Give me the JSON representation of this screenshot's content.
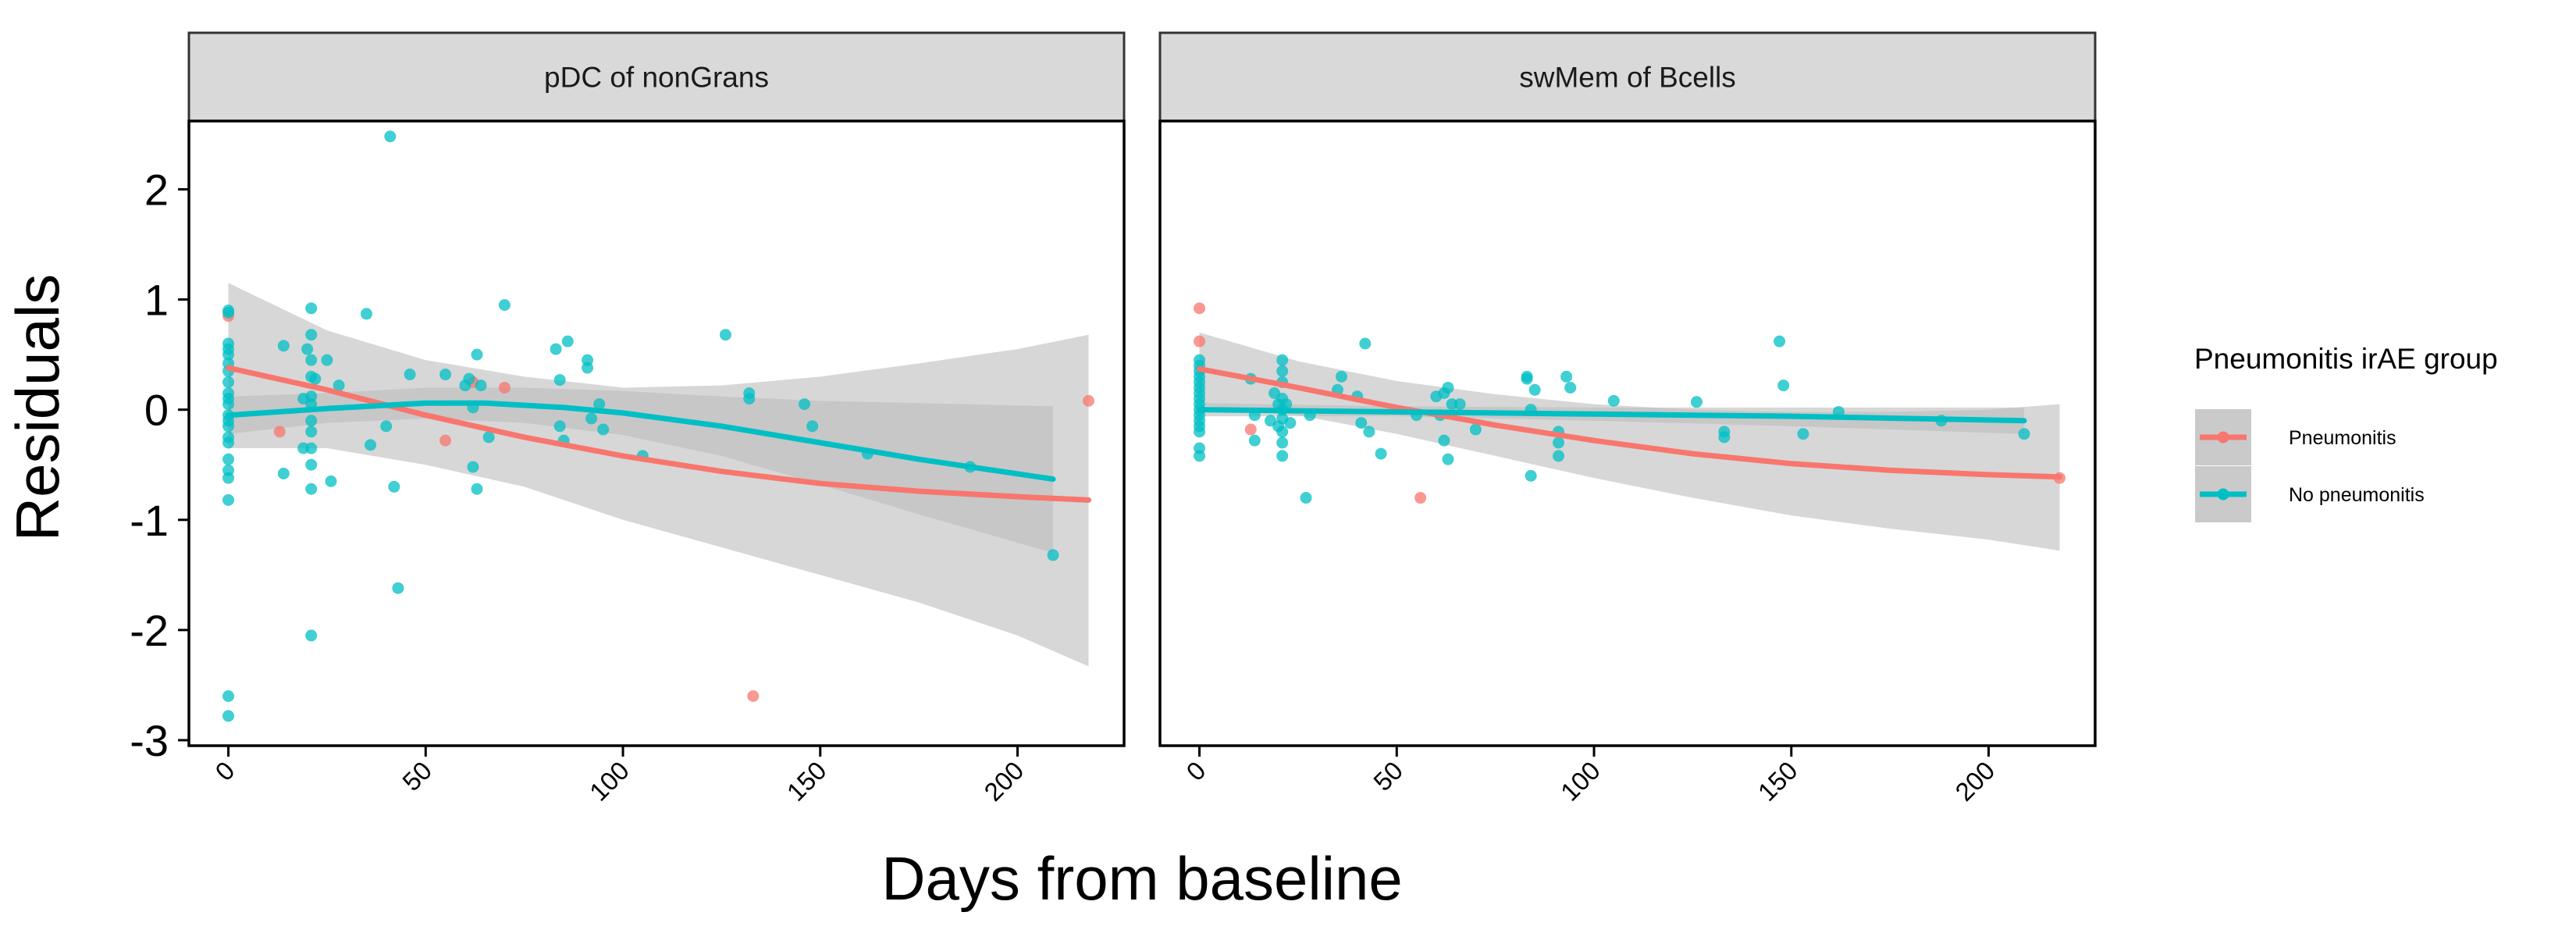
{
  "chart_data": {
    "type": "scatter",
    "ylabel": "Residuals",
    "xlabel": "Days from baseline",
    "xlim": [
      -10,
      227
    ],
    "ylim": [
      -3.05,
      2.62
    ],
    "x_ticks": [
      0,
      50,
      100,
      150,
      200
    ],
    "y_ticks": [
      -3,
      -2,
      -1,
      0,
      1,
      2
    ],
    "grid": false,
    "legend": {
      "title": "Pneumonitis irAE group",
      "position": "right",
      "entries": [
        {
          "name": "Pneumonitis",
          "color": "#F8766D"
        },
        {
          "name": "No pneumonitis",
          "color": "#00BFC4"
        }
      ]
    },
    "colors": {
      "Pneumonitis": "#F8766D",
      "No pneumonitis": "#00BFC4",
      "ribbon": "#bdbdbd",
      "strip": "#d9d9d9"
    },
    "panels": [
      {
        "title": "pDC of nonGrans",
        "series": [
          {
            "name": "Pneumonitis",
            "points": [
              [
                0,
                0.85
              ],
              [
                13,
                -0.2
              ],
              [
                55,
                -0.28
              ],
              [
                62,
                0.25
              ],
              [
                70,
                0.2
              ],
              [
                133,
                -2.6
              ],
              [
                218,
                0.08
              ]
            ],
            "fit": [
              [
                0,
                0.38
              ],
              [
                25,
                0.18
              ],
              [
                50,
                -0.05
              ],
              [
                75,
                -0.25
              ],
              [
                100,
                -0.42
              ],
              [
                125,
                -0.56
              ],
              [
                150,
                -0.67
              ],
              [
                175,
                -0.74
              ],
              [
                200,
                -0.79
              ],
              [
                218,
                -0.82
              ]
            ],
            "ci": [
              [
                0,
                1.15,
                -0.35
              ],
              [
                25,
                0.72,
                -0.35
              ],
              [
                50,
                0.45,
                -0.5
              ],
              [
                75,
                0.3,
                -0.7
              ],
              [
                100,
                0.2,
                -1.0
              ],
              [
                125,
                0.22,
                -1.25
              ],
              [
                150,
                0.3,
                -1.5
              ],
              [
                175,
                0.42,
                -1.75
              ],
              [
                200,
                0.55,
                -2.05
              ],
              [
                218,
                0.68,
                -2.33
              ]
            ]
          },
          {
            "name": "No pneumonitis",
            "points": [
              [
                0,
                0.9
              ],
              [
                0,
                0.88
              ],
              [
                0,
                0.6
              ],
              [
                0,
                0.55
              ],
              [
                0,
                0.5
              ],
              [
                0,
                0.42
              ],
              [
                0,
                0.35
              ],
              [
                0,
                0.25
              ],
              [
                0,
                0.15
              ],
              [
                0,
                0.1
              ],
              [
                0,
                0.05
              ],
              [
                0,
                -0.05
              ],
              [
                0,
                -0.1
              ],
              [
                0,
                -0.15
              ],
              [
                0,
                -0.25
              ],
              [
                0,
                -0.3
              ],
              [
                0,
                -0.45
              ],
              [
                0,
                -0.55
              ],
              [
                0,
                -0.62
              ],
              [
                0,
                -0.82
              ],
              [
                0,
                -2.6
              ],
              [
                0,
                -2.78
              ],
              [
                14,
                0.58
              ],
              [
                14,
                -0.58
              ],
              [
                19,
                0.1
              ],
              [
                19,
                -0.35
              ],
              [
                20,
                0.55
              ],
              [
                21,
                0.92
              ],
              [
                21,
                0.68
              ],
              [
                21,
                0.45
              ],
              [
                21,
                0.3
              ],
              [
                21,
                0.12
              ],
              [
                21,
                0.05
              ],
              [
                21,
                -0.1
              ],
              [
                21,
                -0.2
              ],
              [
                21,
                -0.35
              ],
              [
                21,
                -0.5
              ],
              [
                21,
                -0.72
              ],
              [
                21,
                -2.05
              ],
              [
                22,
                0.28
              ],
              [
                25,
                0.45
              ],
              [
                26,
                -0.65
              ],
              [
                28,
                0.22
              ],
              [
                35,
                0.87
              ],
              [
                36,
                -0.32
              ],
              [
                40,
                -0.15
              ],
              [
                41,
                2.48
              ],
              [
                42,
                -0.7
              ],
              [
                43,
                -1.62
              ],
              [
                46,
                0.32
              ],
              [
                55,
                0.32
              ],
              [
                60,
                0.22
              ],
              [
                61,
                0.28
              ],
              [
                62,
                0.02
              ],
              [
                62,
                -0.52
              ],
              [
                63,
                -0.72
              ],
              [
                63,
                0.5
              ],
              [
                64,
                0.22
              ],
              [
                66,
                -0.25
              ],
              [
                70,
                0.95
              ],
              [
                83,
                0.55
              ],
              [
                84,
                0.27
              ],
              [
                84,
                -0.15
              ],
              [
                85,
                -0.28
              ],
              [
                86,
                0.62
              ],
              [
                91,
                0.38
              ],
              [
                91,
                0.45
              ],
              [
                92,
                -0.08
              ],
              [
                94,
                0.05
              ],
              [
                95,
                -0.18
              ],
              [
                105,
                -0.42
              ],
              [
                126,
                0.68
              ],
              [
                132,
                0.15
              ],
              [
                132,
                0.1
              ],
              [
                146,
                0.05
              ],
              [
                148,
                -0.15
              ],
              [
                162,
                -0.4
              ],
              [
                188,
                -0.52
              ],
              [
                209,
                -1.32
              ]
            ],
            "fit": [
              [
                0,
                -0.05
              ],
              [
                25,
                0.01
              ],
              [
                50,
                0.06
              ],
              [
                65,
                0.06
              ],
              [
                85,
                0.02
              ],
              [
                100,
                -0.03
              ],
              [
                125,
                -0.15
              ],
              [
                150,
                -0.3
              ],
              [
                175,
                -0.45
              ],
              [
                209,
                -0.63
              ]
            ],
            "ci": [
              [
                0,
                0.12,
                -0.22
              ],
              [
                25,
                0.15,
                -0.12
              ],
              [
                50,
                0.2,
                -0.08
              ],
              [
                75,
                0.2,
                -0.12
              ],
              [
                100,
                0.17,
                -0.23
              ],
              [
                125,
                0.12,
                -0.42
              ],
              [
                150,
                0.08,
                -0.68
              ],
              [
                175,
                0.06,
                -0.95
              ],
              [
                209,
                0.03,
                -1.3
              ]
            ]
          }
        ]
      },
      {
        "title": "swMem of Bcells",
        "series": [
          {
            "name": "Pneumonitis",
            "points": [
              [
                0,
                0.92
              ],
              [
                0,
                0.62
              ],
              [
                13,
                -0.18
              ],
              [
                56,
                -0.8
              ],
              [
                218,
                -0.62
              ]
            ],
            "fit": [
              [
                0,
                0.37
              ],
              [
                25,
                0.2
              ],
              [
                50,
                0.02
              ],
              [
                75,
                -0.14
              ],
              [
                100,
                -0.28
              ],
              [
                125,
                -0.4
              ],
              [
                150,
                -0.49
              ],
              [
                175,
                -0.55
              ],
              [
                200,
                -0.59
              ],
              [
                218,
                -0.61
              ]
            ],
            "ci": [
              [
                0,
                0.7,
                0.04
              ],
              [
                25,
                0.44,
                -0.05
              ],
              [
                50,
                0.26,
                -0.22
              ],
              [
                75,
                0.14,
                -0.42
              ],
              [
                100,
                0.05,
                -0.62
              ],
              [
                125,
                0.0,
                -0.8
              ],
              [
                150,
                -0.02,
                -0.96
              ],
              [
                175,
                -0.02,
                -1.08
              ],
              [
                200,
                0.0,
                -1.18
              ],
              [
                218,
                0.05,
                -1.28
              ]
            ]
          },
          {
            "name": "No pneumonitis",
            "points": [
              [
                0,
                0.45
              ],
              [
                0,
                0.4
              ],
              [
                0,
                0.35
              ],
              [
                0,
                0.3
              ],
              [
                0,
                0.25
              ],
              [
                0,
                0.2
              ],
              [
                0,
                0.15
              ],
              [
                0,
                0.1
              ],
              [
                0,
                0.05
              ],
              [
                0,
                0.0
              ],
              [
                0,
                -0.05
              ],
              [
                0,
                -0.1
              ],
              [
                0,
                -0.15
              ],
              [
                0,
                -0.2
              ],
              [
                0,
                -0.35
              ],
              [
                0,
                -0.42
              ],
              [
                13,
                0.28
              ],
              [
                14,
                -0.05
              ],
              [
                14,
                -0.28
              ],
              [
                18,
                -0.1
              ],
              [
                19,
                0.15
              ],
              [
                20,
                0.05
              ],
              [
                20,
                -0.15
              ],
              [
                21,
                0.45
              ],
              [
                21,
                0.35
              ],
              [
                21,
                0.25
              ],
              [
                21,
                0.1
              ],
              [
                21,
                0.0
              ],
              [
                21,
                -0.08
              ],
              [
                21,
                -0.2
              ],
              [
                21,
                -0.3
              ],
              [
                21,
                -0.42
              ],
              [
                22,
                0.05
              ],
              [
                23,
                -0.12
              ],
              [
                27,
                -0.8
              ],
              [
                28,
                -0.05
              ],
              [
                35,
                0.18
              ],
              [
                36,
                0.3
              ],
              [
                40,
                0.12
              ],
              [
                41,
                -0.12
              ],
              [
                42,
                0.6
              ],
              [
                43,
                -0.2
              ],
              [
                46,
                -0.4
              ],
              [
                55,
                -0.05
              ],
              [
                60,
                0.12
              ],
              [
                61,
                -0.05
              ],
              [
                62,
                0.15
              ],
              [
                62,
                -0.28
              ],
              [
                63,
                0.2
              ],
              [
                63,
                -0.45
              ],
              [
                64,
                0.05
              ],
              [
                66,
                0.05
              ],
              [
                70,
                -0.18
              ],
              [
                83,
                0.3
              ],
              [
                83,
                0.28
              ],
              [
                84,
                0.0
              ],
              [
                84,
                -0.6
              ],
              [
                85,
                0.18
              ],
              [
                91,
                -0.2
              ],
              [
                91,
                -0.3
              ],
              [
                91,
                -0.42
              ],
              [
                93,
                0.3
              ],
              [
                94,
                0.2
              ],
              [
                105,
                0.08
              ],
              [
                126,
                0.07
              ],
              [
                133,
                -0.2
              ],
              [
                133,
                -0.25
              ],
              [
                147,
                0.62
              ],
              [
                148,
                0.22
              ],
              [
                153,
                -0.22
              ],
              [
                162,
                -0.02
              ],
              [
                188,
                -0.1
              ],
              [
                209,
                -0.22
              ]
            ],
            "fit": [
              [
                0,
                0.0
              ],
              [
                50,
                -0.02
              ],
              [
                100,
                -0.04
              ],
              [
                150,
                -0.06
              ],
              [
                209,
                -0.1
              ]
            ],
            "ci": [
              [
                0,
                0.06,
                -0.06
              ],
              [
                50,
                0.03,
                -0.06
              ],
              [
                100,
                0.02,
                -0.1
              ],
              [
                150,
                0.02,
                -0.15
              ],
              [
                209,
                0.02,
                -0.22
              ]
            ]
          }
        ]
      }
    ]
  }
}
